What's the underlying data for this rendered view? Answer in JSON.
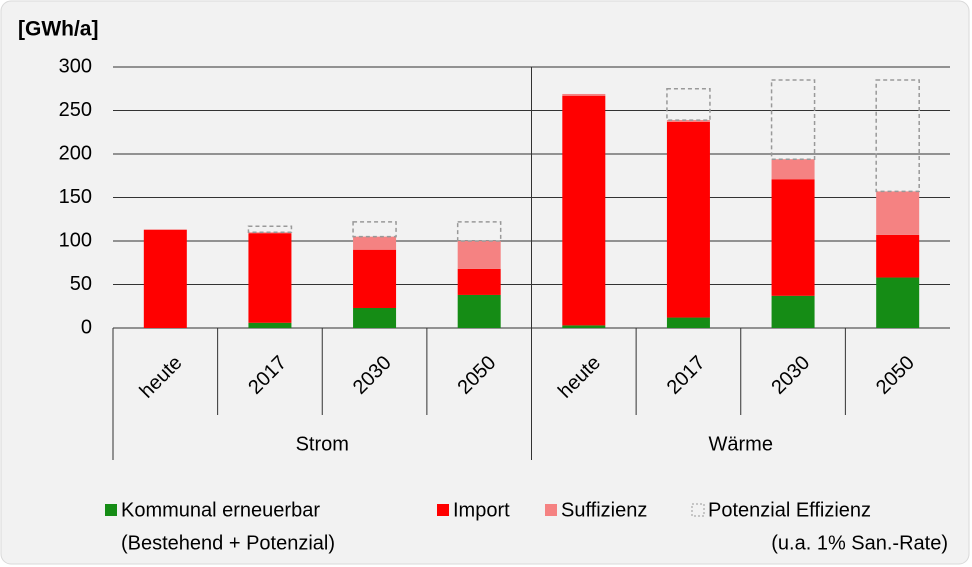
{
  "chart_data": {
    "type": "stacked_bar",
    "unit_label": "[GWh/a]",
    "categories": [
      "heute",
      "2017",
      "2030",
      "2050",
      "heute",
      "2017",
      "2030",
      "2050"
    ],
    "groups": [
      "Strom",
      "Wärme"
    ],
    "series": [
      {
        "name": "Kommunal erneuerbar",
        "detail": "(Bestehend + Potenzial)",
        "color": "#158c15",
        "values": [
          0,
          6,
          23,
          38,
          3,
          12,
          37,
          58
        ]
      },
      {
        "name": "Import",
        "color": "#ff0000",
        "values": [
          113,
          103,
          67,
          30,
          264,
          225,
          134,
          49
        ]
      },
      {
        "name": "Suffizienz",
        "color": "#f58282",
        "values": [
          0,
          1,
          15,
          32,
          2,
          2,
          23,
          50
        ]
      },
      {
        "name": "Potenzial Effizienz",
        "detail": "(u.a. 1% San.-Rate)",
        "color": "#999999",
        "style": "dashed",
        "values": [
          0,
          7,
          17,
          22,
          0,
          36,
          91,
          128
        ]
      }
    ],
    "ylim": [
      0,
      300
    ],
    "yticks": [
      0,
      50,
      100,
      150,
      200,
      250,
      300
    ],
    "grid": true
  }
}
